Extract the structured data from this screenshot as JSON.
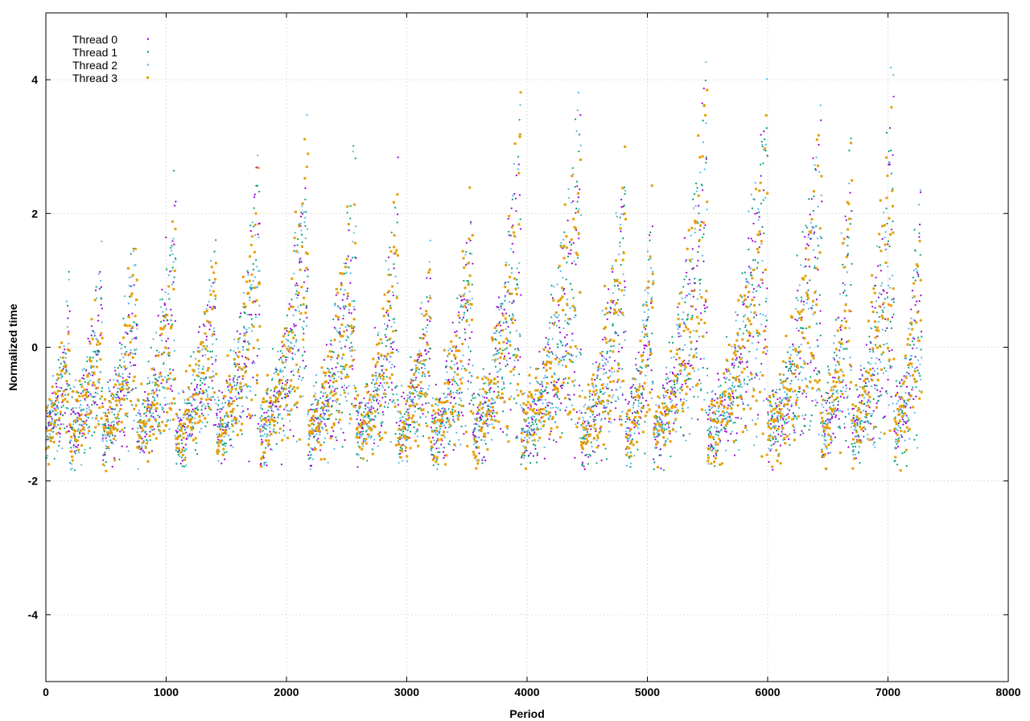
{
  "chart_data": {
    "type": "scatter",
    "title": "",
    "xlabel": "Period",
    "ylabel": "Normalized time",
    "xlim": [
      0,
      8000
    ],
    "ylim": [
      -5,
      5
    ],
    "xticks": [
      0,
      1000,
      2000,
      3000,
      4000,
      5000,
      6000,
      7000,
      8000
    ],
    "yticks": [
      -4,
      -2,
      0,
      2,
      4
    ],
    "grid": true,
    "legend_position": "top-left",
    "pattern": {
      "description_of_envelope": "repeating sawtooth cycles; each cycle starts near -1.3 and rises to a peak",
      "cycles": [
        {
          "start": 0,
          "end": 200,
          "peak": 1.0
        },
        {
          "start": 200,
          "end": 470,
          "peak": 1.5
        },
        {
          "start": 470,
          "end": 760,
          "peak": 2.1
        },
        {
          "start": 760,
          "end": 1080,
          "peak": 2.5
        },
        {
          "start": 1080,
          "end": 1420,
          "peak": 1.8
        },
        {
          "start": 1420,
          "end": 1780,
          "peak": 3.3
        },
        {
          "start": 1780,
          "end": 2180,
          "peak": 3.2
        },
        {
          "start": 2180,
          "end": 2580,
          "peak": 3.1
        },
        {
          "start": 2580,
          "end": 2930,
          "peak": 2.4
        },
        {
          "start": 2930,
          "end": 3200,
          "peak": 1.6
        },
        {
          "start": 3200,
          "end": 3550,
          "peak": 2.6
        },
        {
          "start": 3550,
          "end": 3950,
          "peak": 3.8
        },
        {
          "start": 3950,
          "end": 4450,
          "peak": 3.8
        },
        {
          "start": 4450,
          "end": 4820,
          "peak": 3.2
        },
        {
          "start": 4820,
          "end": 5050,
          "peak": 2.2
        },
        {
          "start": 5050,
          "end": 5500,
          "peak": 4.6
        },
        {
          "start": 5500,
          "end": 6000,
          "peak": 4.0
        },
        {
          "start": 6000,
          "end": 6450,
          "peak": 4.1
        },
        {
          "start": 6450,
          "end": 6700,
          "peak": 3.6
        },
        {
          "start": 6700,
          "end": 7050,
          "peak": 4.5
        },
        {
          "start": 7050,
          "end": 7280,
          "peak": 2.8
        }
      ],
      "x_range_of_points": [
        0,
        7280
      ],
      "baseline": -1.3
    },
    "series": [
      {
        "name": "Thread 0",
        "color": "#9400d3",
        "marker": "dot",
        "points_per_series": 1820
      },
      {
        "name": "Thread 1",
        "color": "#009e73",
        "marker": "dot",
        "points_per_series": 1820
      },
      {
        "name": "Thread 2",
        "color": "#56b4e9",
        "marker": "dot",
        "points_per_series": 1820
      },
      {
        "name": "Thread 3",
        "color": "#e69f00",
        "marker": "square",
        "points_per_series": 1820
      }
    ]
  }
}
